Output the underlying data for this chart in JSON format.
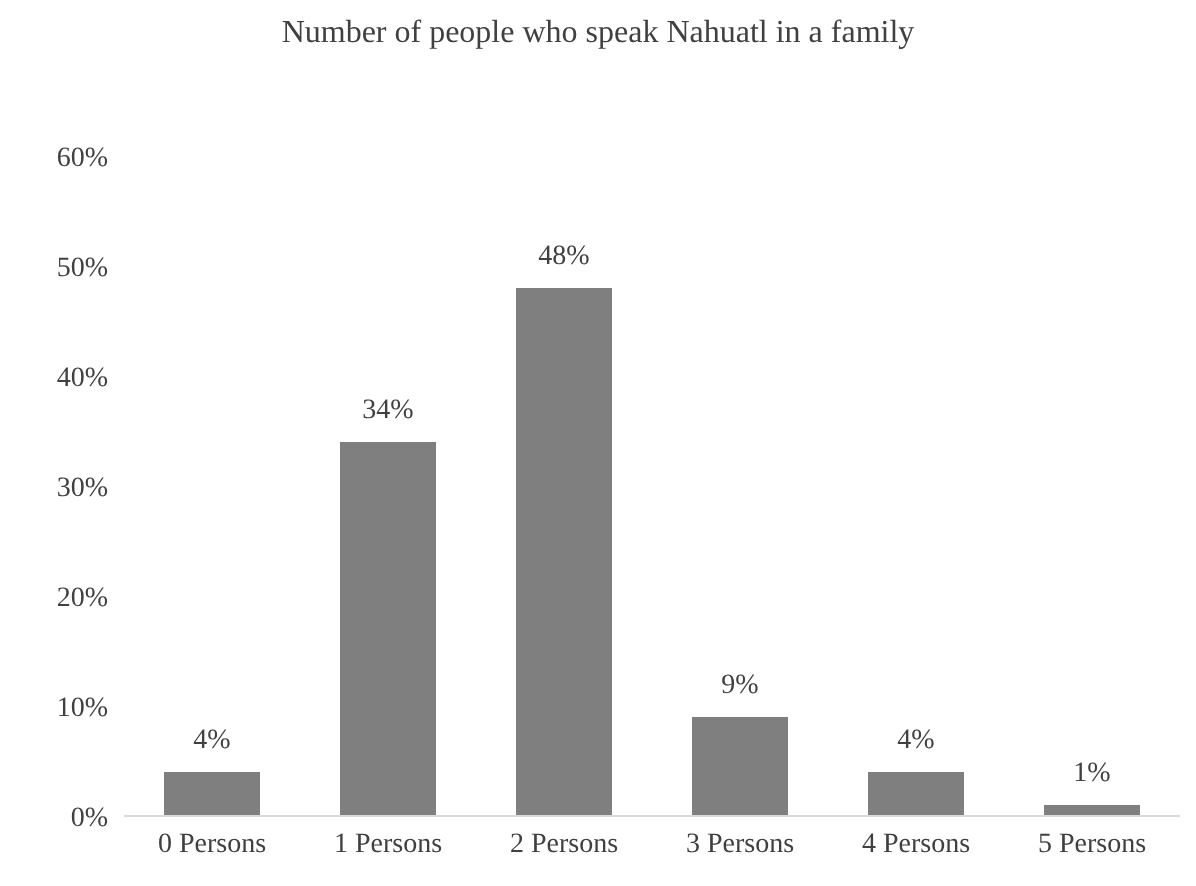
{
  "chart_data": {
    "type": "bar",
    "title": "Number of people who speak Nahuatl in a family",
    "categories": [
      "0 Persons",
      "1 Persons",
      "2 Persons",
      "3 Persons",
      "4 Persons",
      "5 Persons"
    ],
    "values": [
      4,
      34,
      48,
      9,
      4,
      1
    ],
    "value_labels": [
      "4%",
      "34%",
      "48%",
      "9%",
      "4%",
      "1%"
    ],
    "color": "#7f7f7f",
    "ylim": [
      0,
      60
    ],
    "yticks": [
      {
        "value": 0,
        "label": "0%"
      },
      {
        "value": 10,
        "label": "10%"
      },
      {
        "value": 20,
        "label": "20%"
      },
      {
        "value": 30,
        "label": "30%"
      },
      {
        "value": 40,
        "label": "40%"
      },
      {
        "value": 50,
        "label": "50%"
      },
      {
        "value": 60,
        "label": "60%"
      }
    ],
    "grid": false,
    "legend": false
  }
}
